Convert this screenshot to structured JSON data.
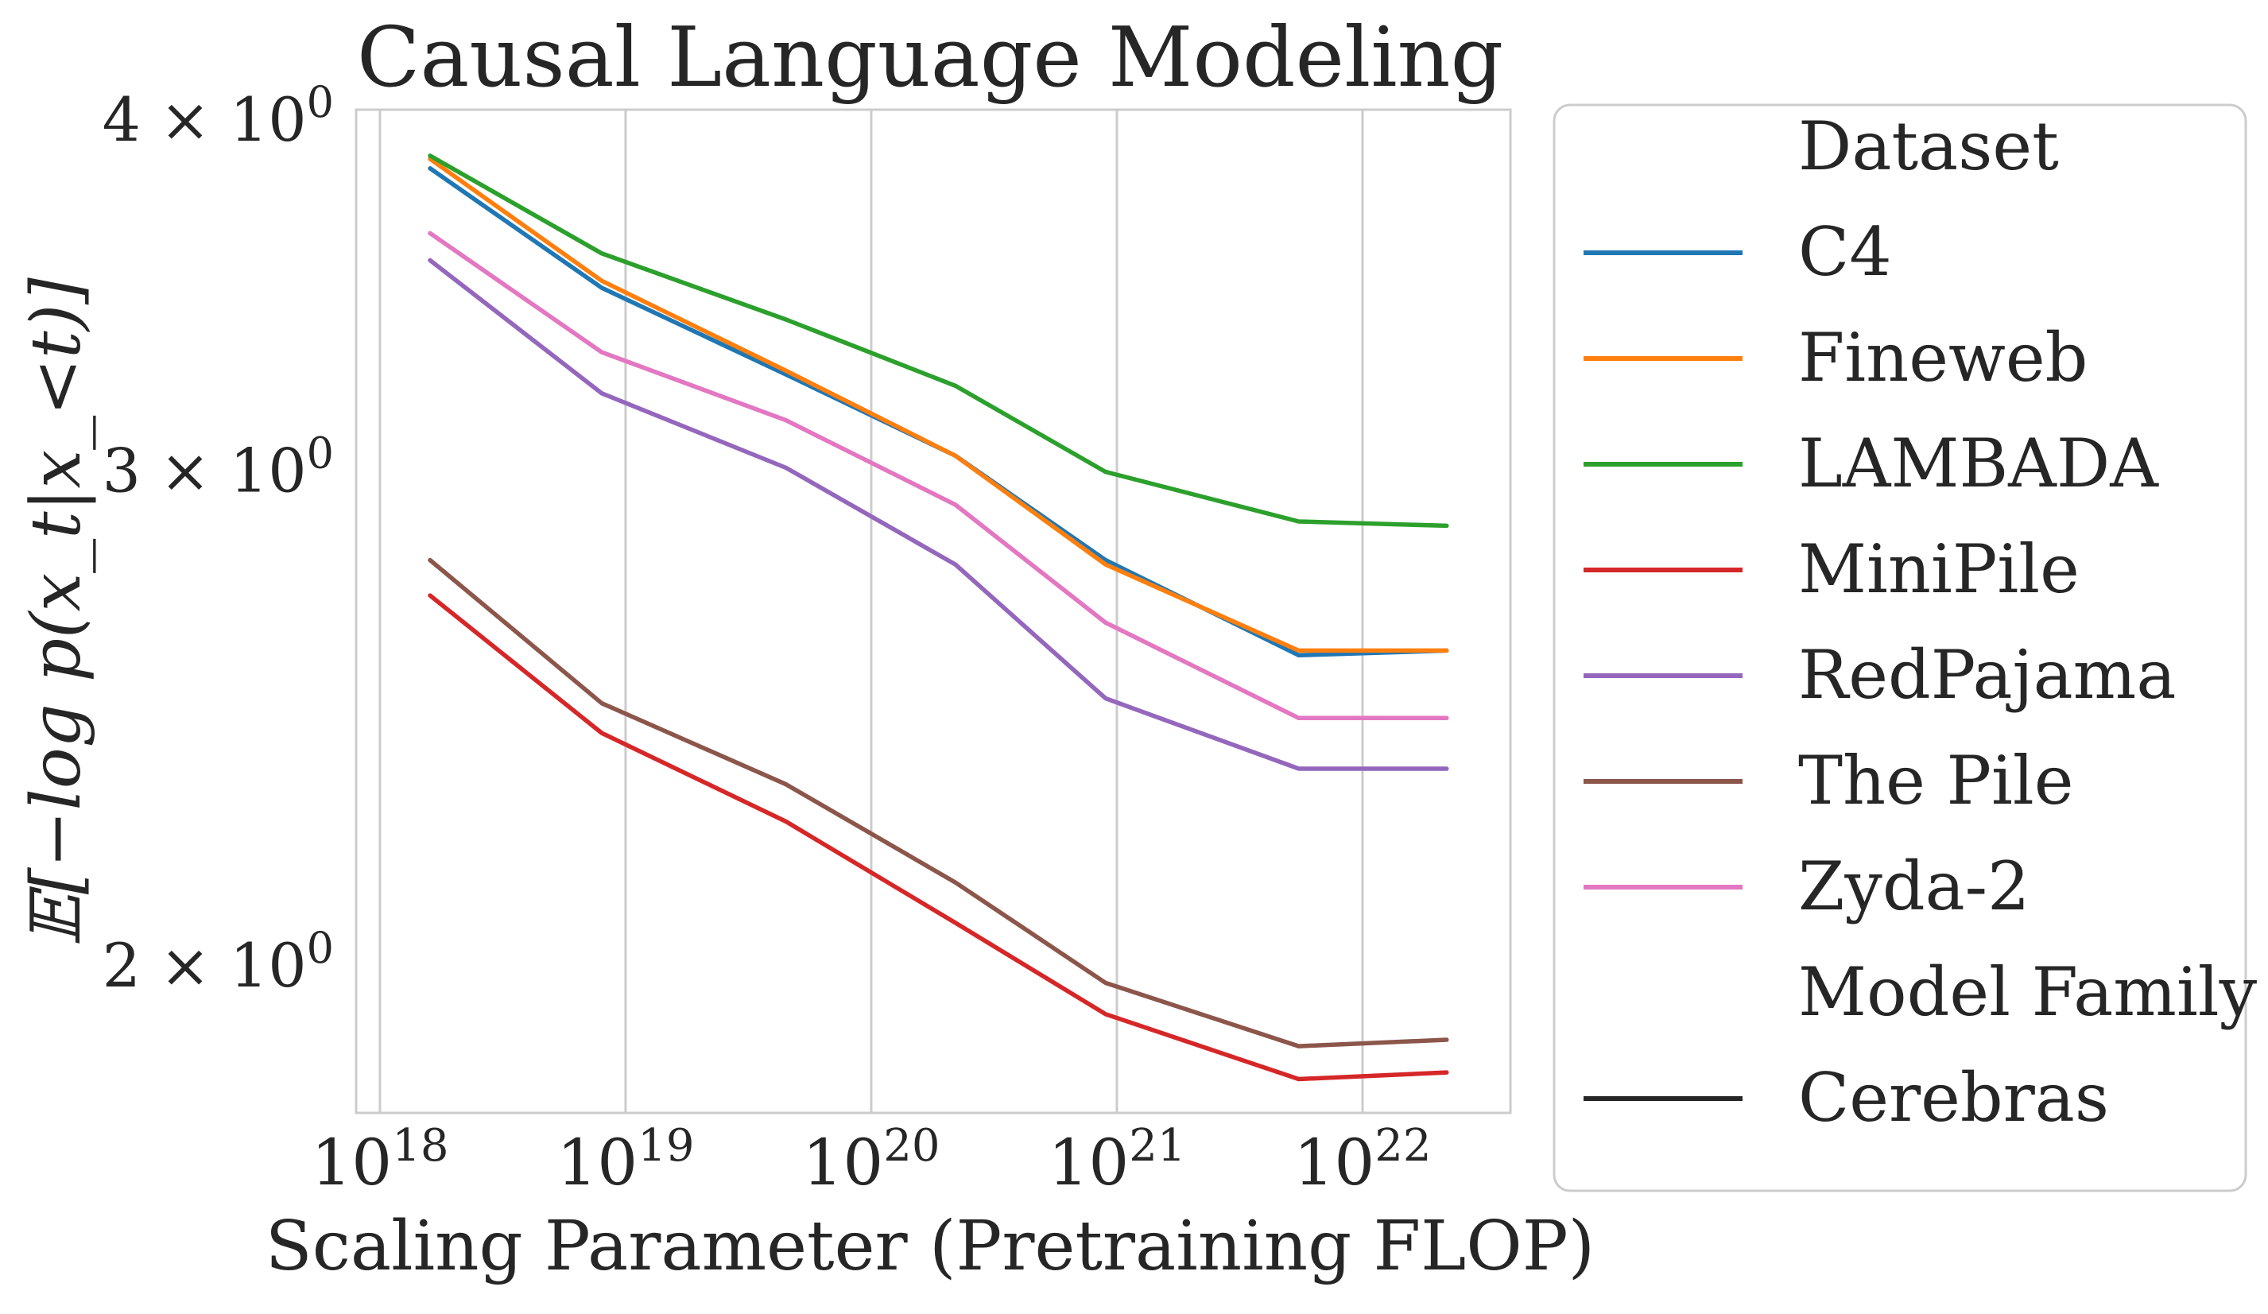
{
  "chart_data": {
    "type": "line",
    "title": "Causal Language Modeling",
    "xlabel": "Scaling Parameter (Pretraining FLOP)",
    "ylabel": "𝔼[−log p(x_t|x_<t)]",
    "x_scale": "log",
    "y_scale": "log",
    "xlim": [
      8e+17,
      4e+22
    ],
    "ylim": [
      1.78,
      4.05
    ],
    "grid": "vertical",
    "legend_placement": "outside-right",
    "x_ticks": [
      {
        "value": 1e+18,
        "base": "10",
        "exp": "18"
      },
      {
        "value": 1e+19,
        "base": "10",
        "exp": "19"
      },
      {
        "value": 1e+20,
        "base": "10",
        "exp": "20"
      },
      {
        "value": 1e+21,
        "base": "10",
        "exp": "21"
      },
      {
        "value": 1e+22,
        "base": "10",
        "exp": "22"
      }
    ],
    "y_ticks": [
      {
        "value": 4,
        "label": "4 × 10",
        "exp": "0"
      },
      {
        "value": 3,
        "label": "3 × 10",
        "exp": "0"
      },
      {
        "value": 2,
        "label": "2 × 10",
        "exp": "0"
      }
    ],
    "x": [
      1.6e+18,
      8e+18,
      4.5e+19,
      2.2e+20,
      9e+20,
      5.5e+21,
      2.2e+22
    ],
    "series": [
      {
        "name": "C4",
        "color": "#1f77b4",
        "values": [
          3.86,
          3.5,
          3.26,
          3.05,
          2.8,
          2.59,
          2.6
        ]
      },
      {
        "name": "Fineweb",
        "color": "#ff7f0e",
        "values": [
          3.89,
          3.52,
          3.27,
          3.05,
          2.79,
          2.6,
          2.6
        ]
      },
      {
        "name": "LAMBADA",
        "color": "#2ca02c",
        "values": [
          3.9,
          3.6,
          3.41,
          3.23,
          3.01,
          2.89,
          2.88
        ]
      },
      {
        "name": "MiniPile",
        "color": "#d62728",
        "values": [
          2.72,
          2.43,
          2.26,
          2.08,
          1.93,
          1.83,
          1.84
        ]
      },
      {
        "name": "RedPajama",
        "color": "#9467bd",
        "values": [
          3.58,
          3.21,
          3.02,
          2.79,
          2.5,
          2.36,
          2.36
        ]
      },
      {
        "name": "The Pile",
        "color": "#8c564b",
        "values": [
          2.8,
          2.49,
          2.33,
          2.15,
          1.98,
          1.88,
          1.89
        ]
      },
      {
        "name": "Zyda-2",
        "color": "#e377c2",
        "values": [
          3.66,
          3.32,
          3.14,
          2.93,
          2.66,
          2.46,
          2.46
        ]
      }
    ],
    "legend": [
      {
        "label": "Dataset",
        "type": "header"
      },
      {
        "label": "C4",
        "color": "#1f77b4"
      },
      {
        "label": "Fineweb",
        "color": "#ff7f0e"
      },
      {
        "label": "LAMBADA",
        "color": "#2ca02c"
      },
      {
        "label": "MiniPile",
        "color": "#d62728"
      },
      {
        "label": "RedPajama",
        "color": "#9467bd"
      },
      {
        "label": "The Pile",
        "color": "#8c564b"
      },
      {
        "label": "Zyda-2",
        "color": "#e377c2"
      },
      {
        "label": "Model Family",
        "type": "header"
      },
      {
        "label": "Cerebras",
        "color": "#262626"
      }
    ]
  }
}
